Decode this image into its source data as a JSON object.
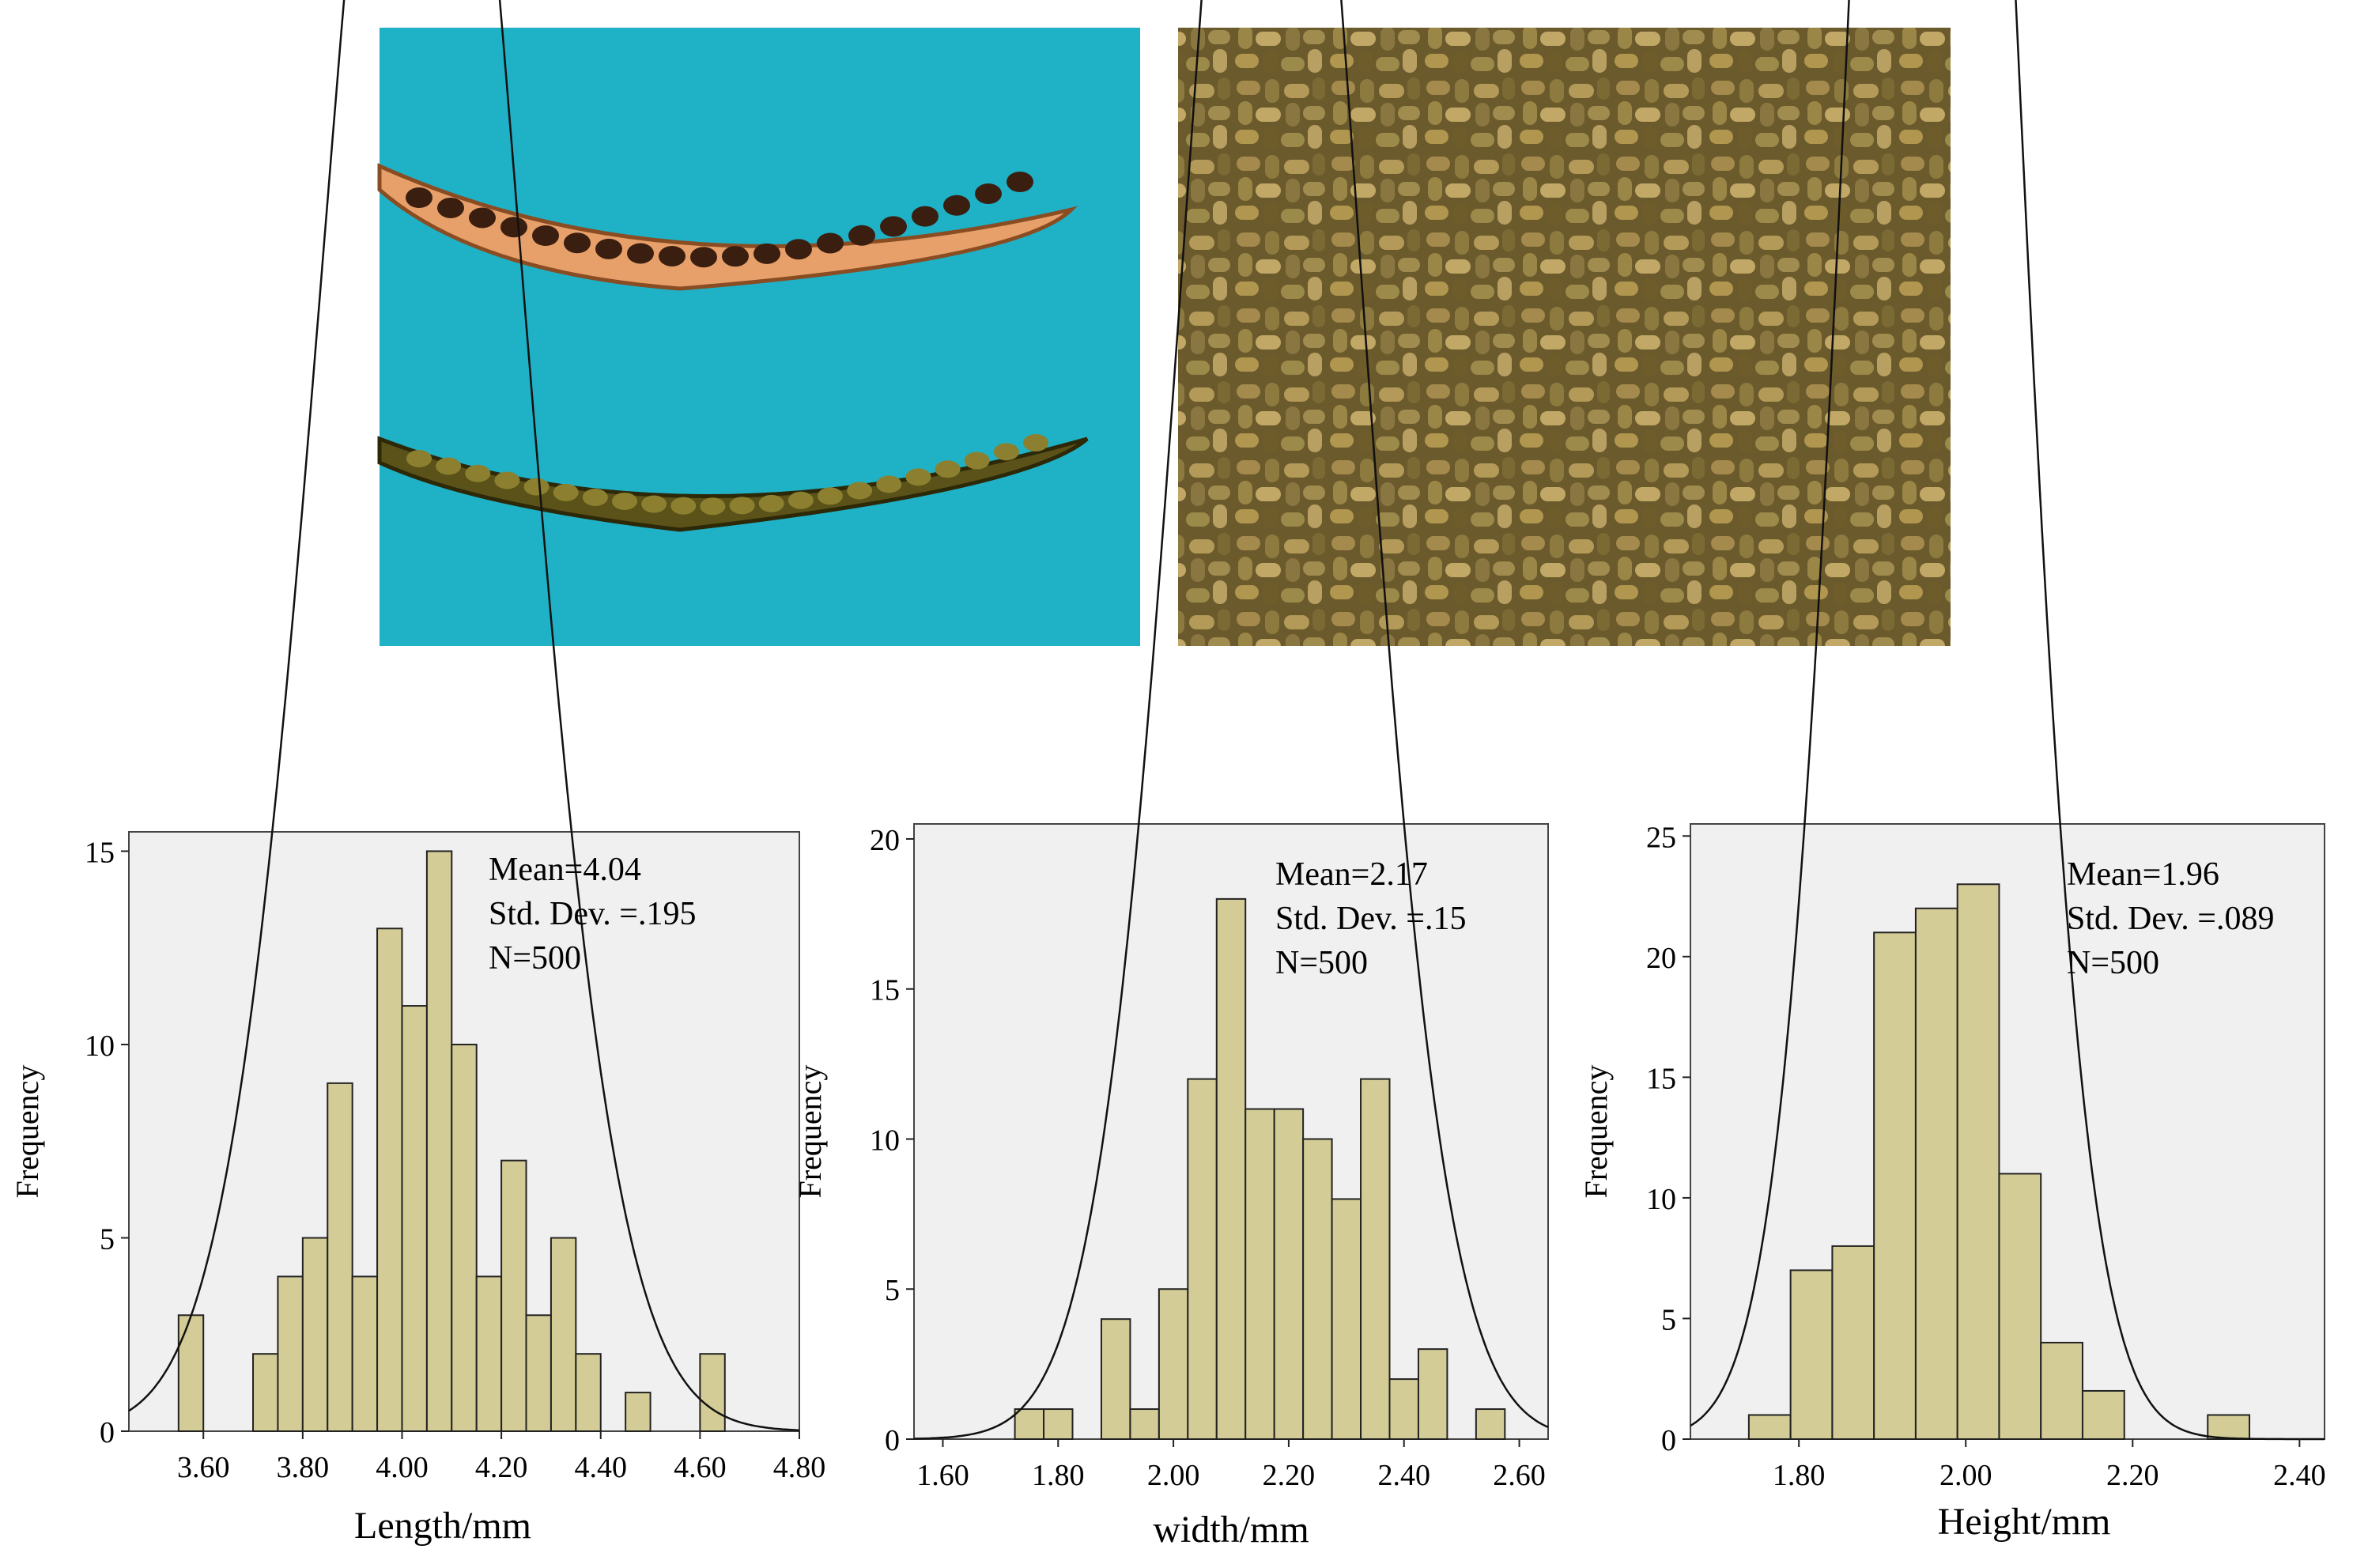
{
  "colors": {
    "pod_background": "#1fb1c6",
    "seed_background": "#6b5a2c",
    "bar_fill": "#d4cc96",
    "bar_stroke": "#222222",
    "plot_background": "#f0f0f0",
    "curve": "#111111"
  },
  "photos": [
    {
      "name": "seed-pods-photo",
      "subject": "seed pods"
    },
    {
      "name": "seeds-photo",
      "subject": "seeds"
    }
  ],
  "chart_data": [
    {
      "type": "bar",
      "subtype": "histogram",
      "xlabel": "Length/mm",
      "ylabel": "Frequency",
      "xlim": [
        3.45,
        4.8
      ],
      "ylim": [
        0,
        15.5
      ],
      "xticks": [
        "3.60",
        "3.80",
        "4.00",
        "4.20",
        "4.40",
        "4.60",
        "4.80"
      ],
      "yticks": [
        "0",
        "5",
        "10",
        "15"
      ],
      "bin_width": 0.05,
      "bins": [
        {
          "start": 3.55,
          "count": 3
        },
        {
          "start": 3.7,
          "count": 2
        },
        {
          "start": 3.75,
          "count": 4
        },
        {
          "start": 3.8,
          "count": 5
        },
        {
          "start": 3.85,
          "count": 9
        },
        {
          "start": 3.9,
          "count": 4
        },
        {
          "start": 3.95,
          "count": 13
        },
        {
          "start": 4.0,
          "count": 11
        },
        {
          "start": 4.05,
          "count": 15
        },
        {
          "start": 4.1,
          "count": 10
        },
        {
          "start": 4.15,
          "count": 4
        },
        {
          "start": 4.2,
          "count": 7
        },
        {
          "start": 4.25,
          "count": 3
        },
        {
          "start": 4.3,
          "count": 5
        },
        {
          "start": 4.35,
          "count": 2
        },
        {
          "start": 4.45,
          "count": 1
        },
        {
          "start": 4.6,
          "count": 2
        }
      ],
      "stats": [
        "Mean=4.04",
        "Std. Dev. =.195",
        "N=500"
      ],
      "mean": 4.04,
      "std": 0.195,
      "n": 500
    },
    {
      "type": "bar",
      "subtype": "histogram",
      "xlabel": "width/mm",
      "ylabel": "Frequency",
      "xlim": [
        1.55,
        2.65
      ],
      "ylim": [
        0,
        20.5
      ],
      "xticks": [
        "1.60",
        "1.80",
        "2.00",
        "2.20",
        "2.40",
        "2.60"
      ],
      "yticks": [
        "0",
        "5",
        "10",
        "15",
        "20"
      ],
      "bin_width": 0.05,
      "bins": [
        {
          "start": 1.725,
          "count": 1
        },
        {
          "start": 1.775,
          "count": 1
        },
        {
          "start": 1.875,
          "count": 4
        },
        {
          "start": 1.925,
          "count": 1
        },
        {
          "start": 1.975,
          "count": 5
        },
        {
          "start": 2.025,
          "count": 12
        },
        {
          "start": 2.075,
          "count": 18
        },
        {
          "start": 2.125,
          "count": 11
        },
        {
          "start": 2.175,
          "count": 11
        },
        {
          "start": 2.225,
          "count": 10
        },
        {
          "start": 2.275,
          "count": 8
        },
        {
          "start": 2.325,
          "count": 12
        },
        {
          "start": 2.375,
          "count": 2
        },
        {
          "start": 2.425,
          "count": 3
        },
        {
          "start": 2.525,
          "count": 1
        }
      ],
      "stats": [
        "Mean=2.17",
        "Std. Dev. =.15",
        "N=500"
      ],
      "mean": 2.17,
      "std": 0.15,
      "n": 500
    },
    {
      "type": "bar",
      "subtype": "histogram",
      "xlabel": "Height/mm",
      "ylabel": "Frequency",
      "xlim": [
        1.67,
        2.43
      ],
      "ylim": [
        0,
        25.5
      ],
      "xticks": [
        "1.80",
        "2.00",
        "2.20",
        "2.40"
      ],
      "yticks": [
        "0",
        "5",
        "10",
        "15",
        "20",
        "25"
      ],
      "bin_width": 0.05,
      "bins": [
        {
          "start": 1.74,
          "count": 1
        },
        {
          "start": 1.79,
          "count": 7
        },
        {
          "start": 1.84,
          "count": 8
        },
        {
          "start": 1.89,
          "count": 21
        },
        {
          "start": 1.94,
          "count": 22
        },
        {
          "start": 1.99,
          "count": 23
        },
        {
          "start": 2.04,
          "count": 11
        },
        {
          "start": 2.09,
          "count": 4
        },
        {
          "start": 2.14,
          "count": 2
        },
        {
          "start": 2.29,
          "count": 1
        }
      ],
      "stats": [
        "Mean=1.96",
        "Std. Dev. =.089",
        "N=500"
      ],
      "mean": 1.96,
      "std": 0.089,
      "n": 500
    }
  ]
}
